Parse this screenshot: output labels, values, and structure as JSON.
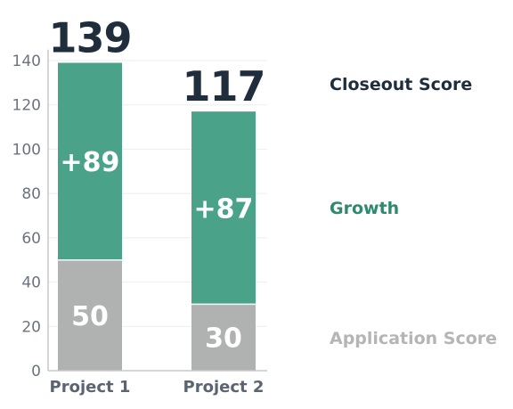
{
  "chart_data": {
    "type": "bar",
    "stacked": true,
    "categories": [
      "Project 1",
      "Project 2"
    ],
    "series": [
      {
        "name": "Application Score",
        "values": [
          50,
          30
        ],
        "labels": [
          "50",
          "30"
        ],
        "color": "#b0b1b1"
      },
      {
        "name": "Growth",
        "values": [
          89,
          87
        ],
        "labels": [
          "+89",
          "+87"
        ],
        "color": "#4aa388"
      }
    ],
    "totals": {
      "name": "Closeout Score",
      "values": [
        139,
        117
      ],
      "labels": [
        "139",
        "117"
      ],
      "color": "#1f2d3d"
    },
    "legend_colors": {
      "Closeout Score": "#1f2d3d",
      "Growth": "#2e8a6c",
      "Application Score": "#b5b5b5"
    },
    "yticks": [
      "0",
      "20",
      "40",
      "60",
      "80",
      "100",
      "120",
      "140"
    ],
    "ylim": [
      0,
      145
    ],
    "grid": true,
    "legend": "right"
  }
}
